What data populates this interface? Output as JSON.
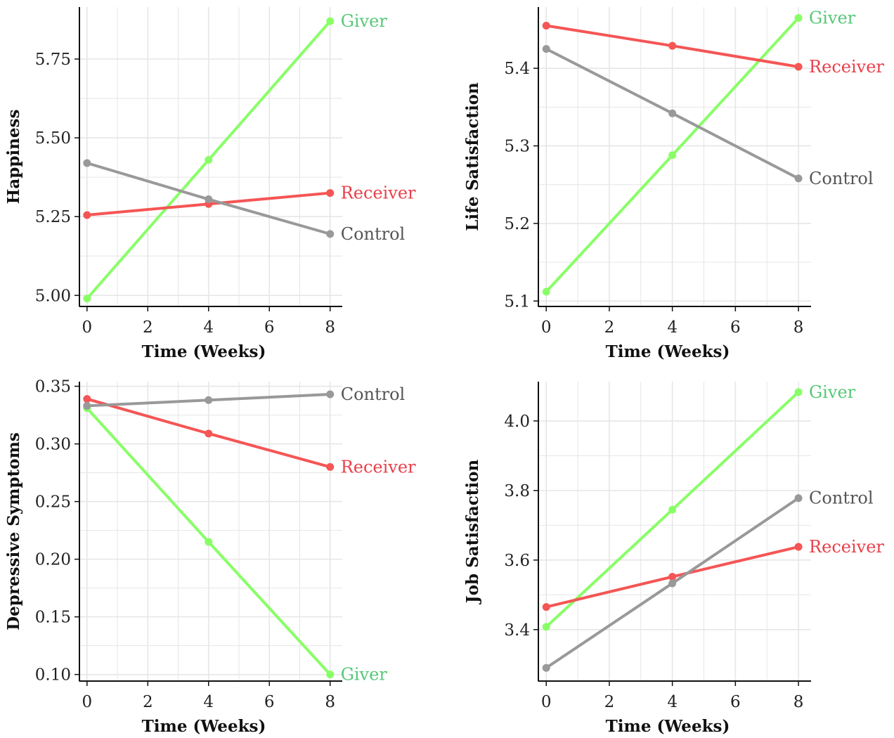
{
  "colors": {
    "giver_line": "#88FF66",
    "giver_label": "#55C878",
    "receiver": "#F55555",
    "receiver_label": "#E8404A",
    "control": "#999999",
    "control_label": "#555555",
    "grid": "#E6E6E6",
    "axis": "#111111"
  },
  "chart_data": [
    {
      "type": "line",
      "xlabel": "Time  (Weeks)",
      "ylabel": "Happiness",
      "xlim": [
        -0.25,
        8.4
      ],
      "ylim": [
        4.965,
        5.915
      ],
      "xticks": [
        0,
        2,
        4,
        6,
        8
      ],
      "yticks": [
        5.0,
        5.25,
        5.5,
        5.75
      ],
      "ytick_labels": [
        "5.00",
        "5.25",
        "5.50",
        "5.75"
      ],
      "grid": true,
      "series": [
        {
          "name": "Giver",
          "color_key": "giver",
          "x": [
            0,
            4,
            8
          ],
          "values": [
            4.99,
            5.43,
            5.87
          ]
        },
        {
          "name": "Receiver",
          "color_key": "receiver",
          "x": [
            0,
            4,
            8
          ],
          "values": [
            5.255,
            5.29,
            5.325
          ]
        },
        {
          "name": "Control",
          "color_key": "control",
          "x": [
            0,
            4,
            8
          ],
          "values": [
            5.42,
            5.305,
            5.195
          ]
        }
      ]
    },
    {
      "type": "line",
      "xlabel": "Time  (Weeks)",
      "ylabel": "Life Satisfaction",
      "xlim": [
        -0.25,
        8.4
      ],
      "ylim": [
        5.093,
        5.479
      ],
      "xticks": [
        0,
        2,
        4,
        6,
        8
      ],
      "yticks": [
        5.1,
        5.2,
        5.3,
        5.4
      ],
      "ytick_labels": [
        "5.1",
        "5.2",
        "5.3",
        "5.4"
      ],
      "grid": true,
      "series": [
        {
          "name": "Giver",
          "color_key": "giver",
          "x": [
            0,
            4,
            8
          ],
          "values": [
            5.112,
            5.288,
            5.465
          ]
        },
        {
          "name": "Receiver",
          "color_key": "receiver",
          "x": [
            0,
            4,
            8
          ],
          "values": [
            5.455,
            5.429,
            5.402
          ]
        },
        {
          "name": "Control",
          "color_key": "control",
          "x": [
            0,
            4,
            8
          ],
          "values": [
            5.425,
            5.342,
            5.258
          ]
        }
      ]
    },
    {
      "type": "line",
      "xlabel": "Time  (Weeks)",
      "ylabel": "Depressive Symptoms",
      "xlim": [
        -0.25,
        8.4
      ],
      "ylim": [
        0.0943,
        0.354
      ],
      "xticks": [
        0,
        2,
        4,
        6,
        8
      ],
      "yticks": [
        0.1,
        0.15,
        0.2,
        0.25,
        0.3,
        0.35
      ],
      "ytick_labels": [
        "0.10",
        "0.15",
        "0.20",
        "0.25",
        "0.30",
        "0.35"
      ],
      "grid": true,
      "series": [
        {
          "name": "Giver",
          "color_key": "giver",
          "x": [
            0,
            4,
            8
          ],
          "values": [
            0.331,
            0.215,
            0.1
          ]
        },
        {
          "name": "Receiver",
          "color_key": "receiver",
          "x": [
            0,
            4,
            8
          ],
          "values": [
            0.339,
            0.309,
            0.28
          ]
        },
        {
          "name": "Control",
          "color_key": "control",
          "x": [
            0,
            4,
            8
          ],
          "values": [
            0.333,
            0.338,
            0.343
          ]
        }
      ]
    },
    {
      "type": "line",
      "xlabel": "Time  (Weeks)",
      "ylabel": "Job Satisfaction",
      "xlim": [
        -0.25,
        8.4
      ],
      "ylim": [
        3.252,
        4.113
      ],
      "xticks": [
        0,
        2,
        4,
        6,
        8
      ],
      "yticks": [
        3.4,
        3.6,
        3.8,
        4.0
      ],
      "ytick_labels": [
        "3.4",
        "3.6",
        "3.8",
        "4.0"
      ],
      "grid": true,
      "series": [
        {
          "name": "Giver",
          "color_key": "giver",
          "x": [
            0,
            4,
            8
          ],
          "values": [
            3.408,
            3.745,
            4.083
          ]
        },
        {
          "name": "Receiver",
          "color_key": "receiver",
          "x": [
            0,
            4,
            8
          ],
          "values": [
            3.465,
            3.552,
            3.638
          ]
        },
        {
          "name": "Control",
          "color_key": "control",
          "x": [
            0,
            4,
            8
          ],
          "values": [
            3.29,
            3.533,
            3.778
          ]
        }
      ]
    }
  ]
}
